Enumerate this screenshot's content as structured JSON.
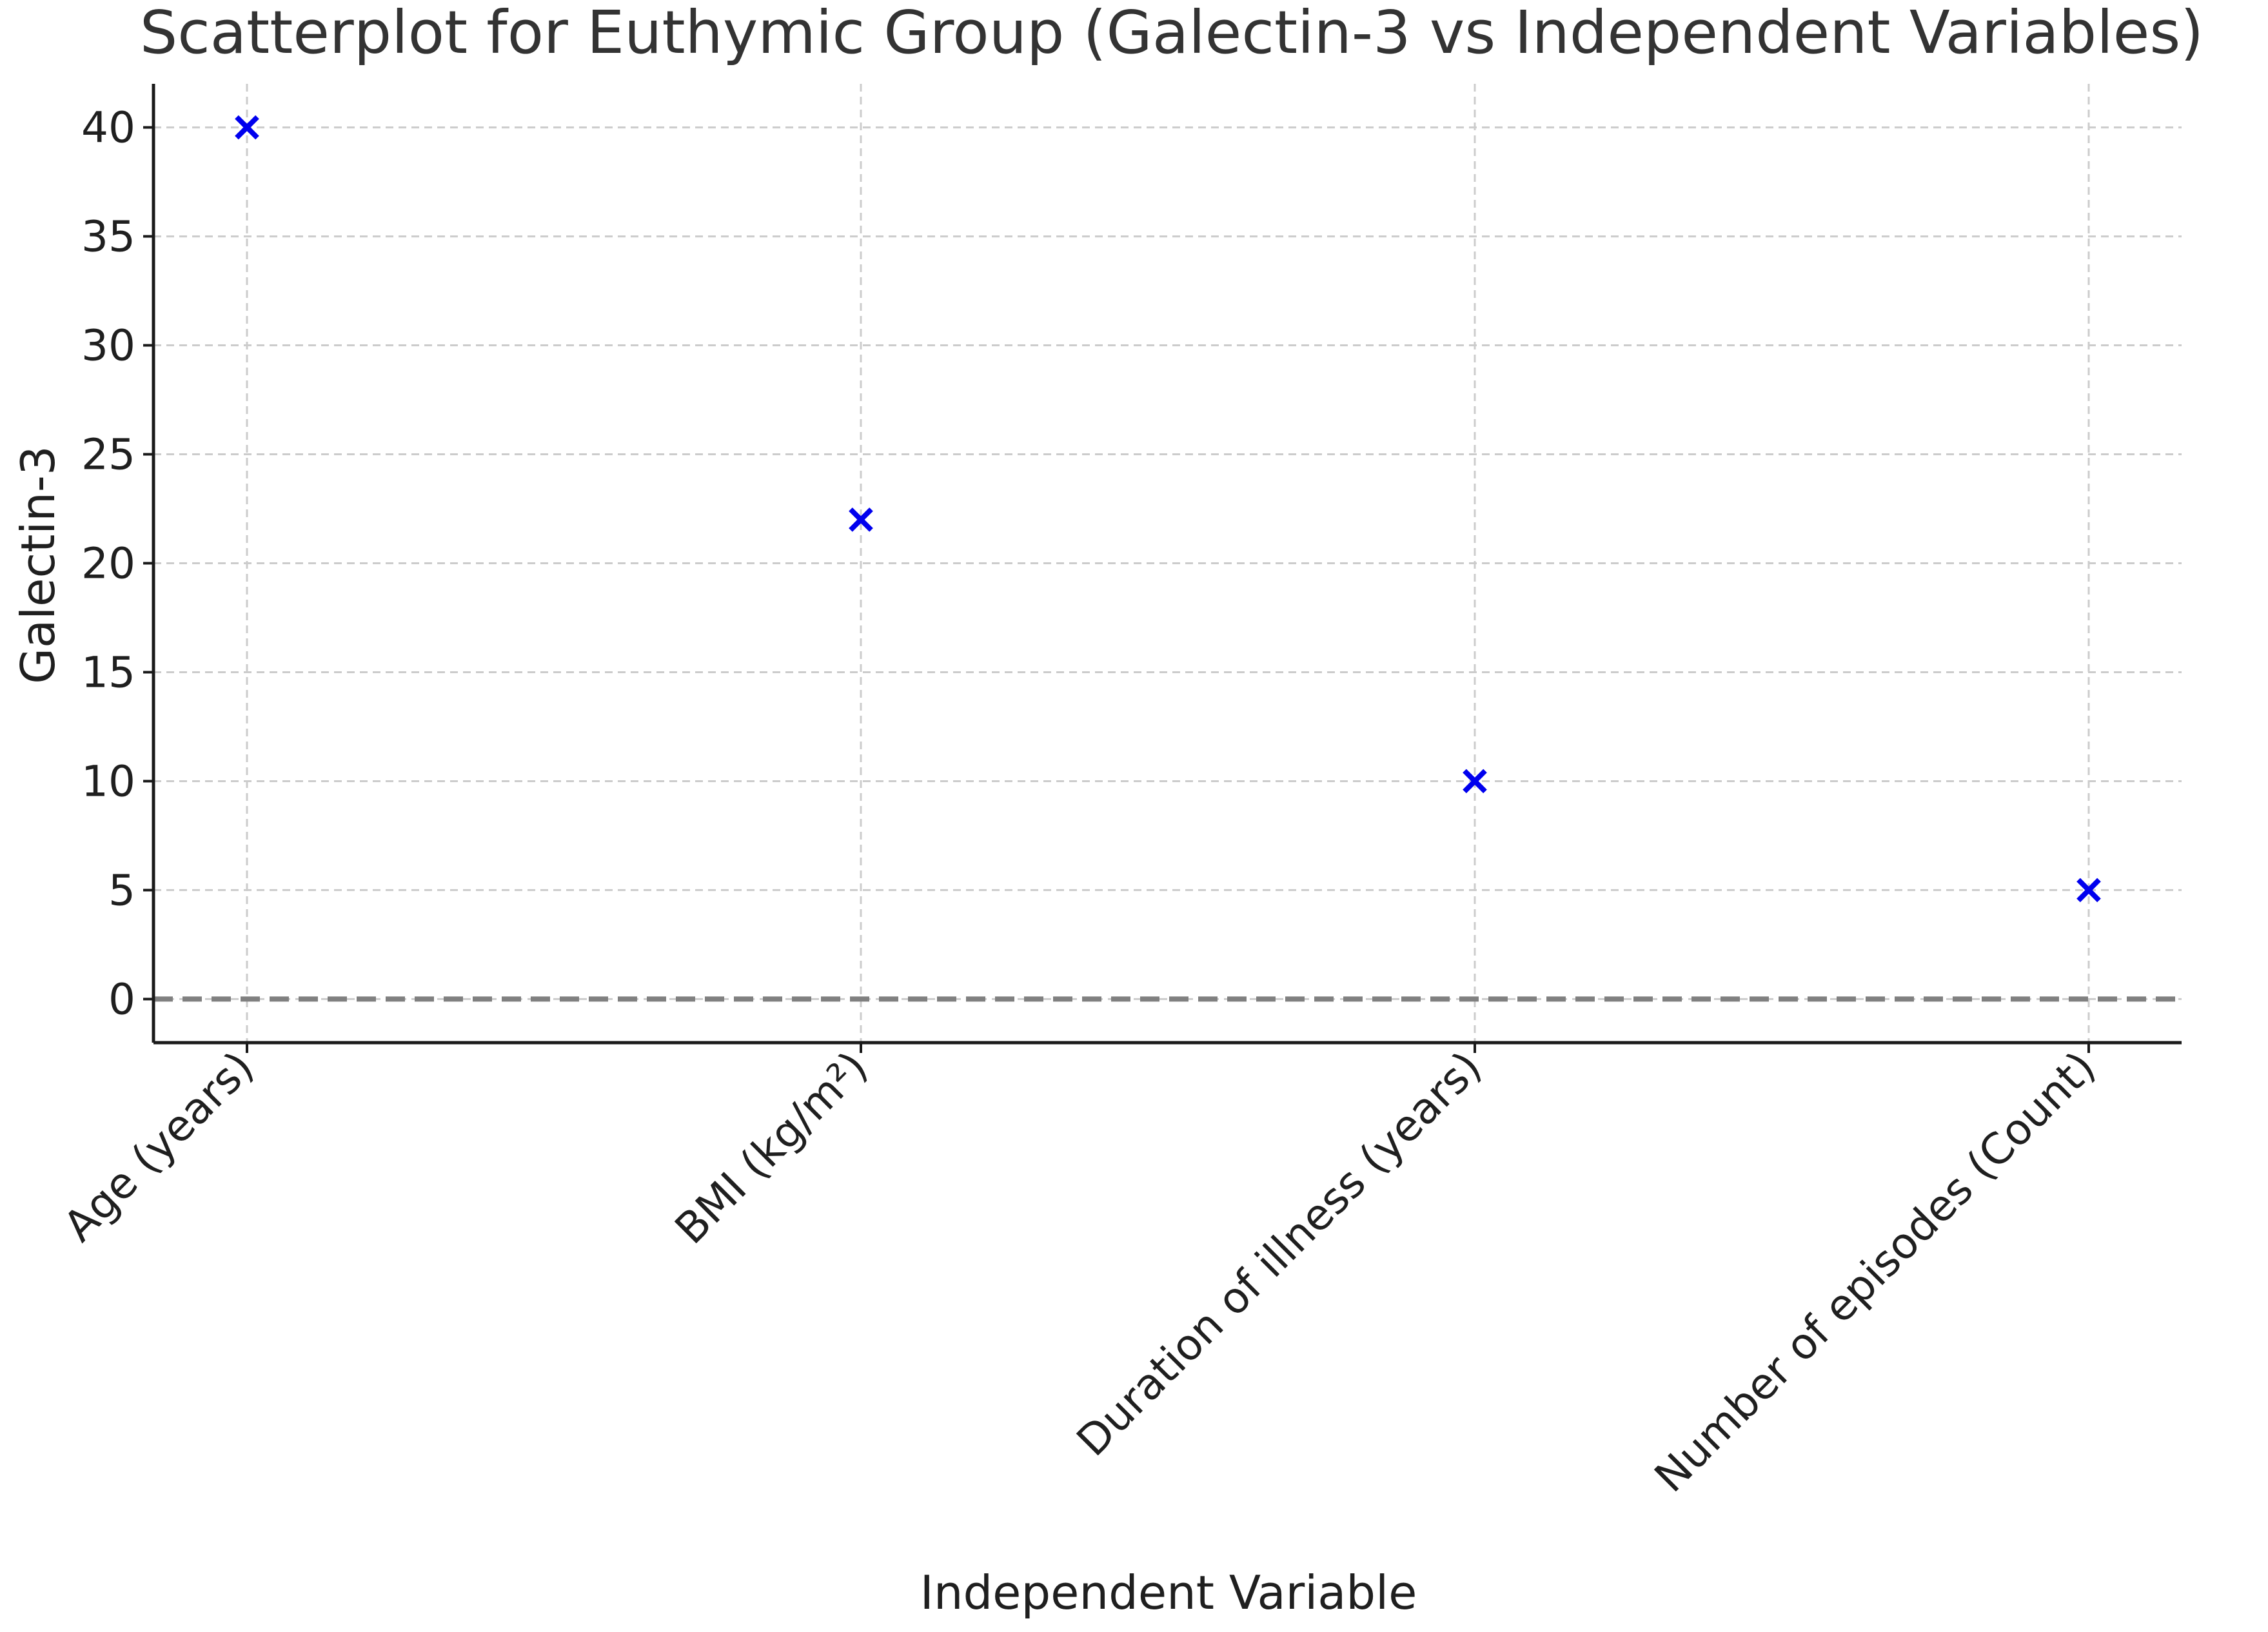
{
  "chart_data": {
    "type": "scatter",
    "title": "Scatterplot for Euthymic Group (Galectin-3 vs Independent Variables)",
    "xlabel": "Independent Variable",
    "ylabel": "Galectin-3",
    "categories": [
      "Age (years)",
      "BMI (kg/m²)",
      "Duration of illness (years)",
      "Number of episodes (Count)"
    ],
    "series": [
      {
        "values": [
          40,
          22,
          10,
          5
        ],
        "marker": "x",
        "color": "#0000ee"
      }
    ],
    "ylim": [
      -2,
      42
    ],
    "yticks": [
      0,
      5,
      10,
      15,
      20,
      25,
      30,
      35,
      40
    ],
    "reference_line": {
      "y": 0,
      "style": "dashed",
      "color": "#808080"
    },
    "grid": true,
    "legend": "none"
  }
}
